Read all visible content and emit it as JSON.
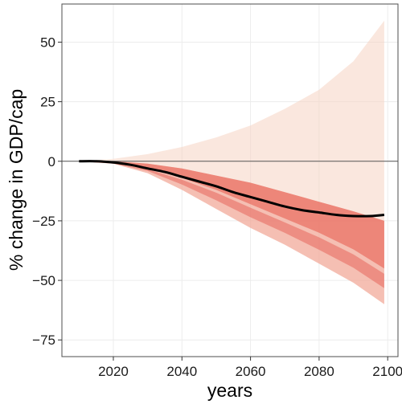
{
  "chart_data": {
    "type": "area",
    "title": "",
    "xlabel": "years",
    "ylabel": "% change in GDP/cap",
    "xlim": [
      2005,
      2103
    ],
    "ylim": [
      -82,
      66
    ],
    "x_ticks": [
      2020,
      2040,
      2060,
      2080,
      2100
    ],
    "y_ticks": [
      50,
      25,
      0,
      -25,
      -50,
      -75
    ],
    "grid": true,
    "legend": "none",
    "reference_line_y": 0,
    "series": [
      {
        "kind": "median-line",
        "x": [
          2010,
          2015,
          2020,
          2025,
          2030,
          2035,
          2040,
          2045,
          2050,
          2055,
          2060,
          2065,
          2070,
          2075,
          2080,
          2085,
          2090,
          2095,
          2099
        ],
        "y": [
          0,
          0,
          -0.5,
          -1.5,
          -3,
          -4.5,
          -6.5,
          -8.5,
          -10.5,
          -13,
          -15,
          -17,
          -19,
          -20.5,
          -21.5,
          -22.5,
          -23,
          -23,
          -22.5
        ]
      },
      {
        "kind": "uncertainty-band",
        "x": [
          2010,
          2020,
          2030,
          2040,
          2050,
          2060,
          2070,
          2080,
          2090,
          2099
        ],
        "upper": [
          0,
          1,
          3,
          6,
          10,
          15,
          22,
          30,
          42,
          59
        ],
        "lower": [
          0,
          -1,
          -5,
          -12,
          -20,
          -28,
          -35,
          -43,
          -51,
          -60
        ],
        "dense_upper": [
          0,
          0,
          -1,
          -3,
          -6,
          -9,
          -13,
          -17,
          -21,
          -25
        ],
        "dense_lower": [
          0,
          -1,
          -3,
          -7,
          -12,
          -18,
          -24,
          -30,
          -37,
          -45
        ]
      }
    ],
    "colors": {
      "band_light": "#f6d3c2",
      "band_mid": "#ef8f7f",
      "band_dense": "#e0342a",
      "median": "#000000",
      "panel_border": "#4d4d4d",
      "grid": "#ececec",
      "zero_line": "#555555"
    }
  }
}
